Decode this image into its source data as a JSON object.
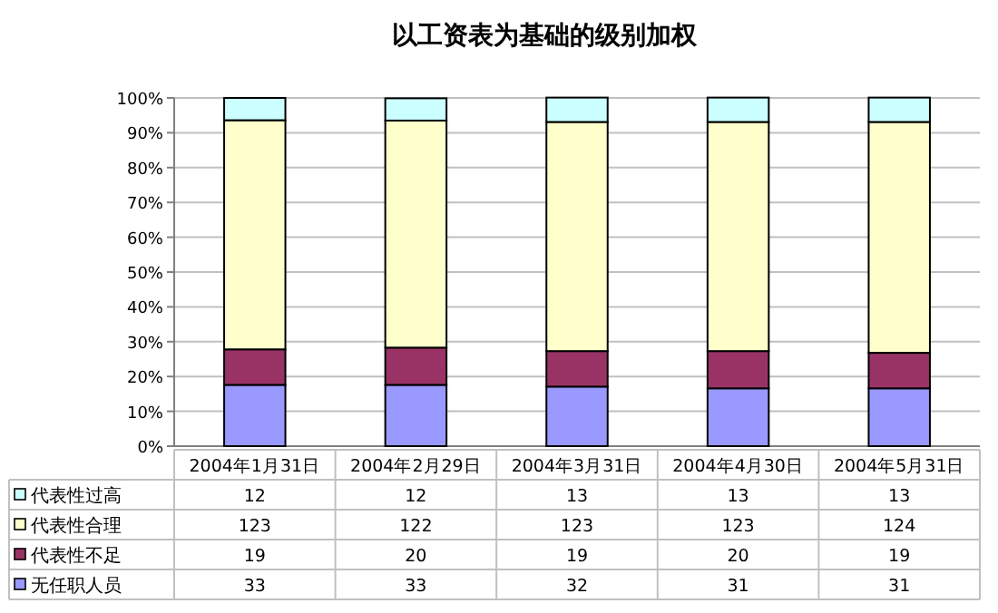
{
  "chart_data": {
    "type": "bar",
    "title": "以工资表为基础的级别加权",
    "stacked": true,
    "grid": "y",
    "legend": "bottom",
    "categories": [
      "2004年1月31日",
      "2004年2月29日",
      "2004年3月31日",
      "2004年4月30日",
      "2004年5月31日"
    ],
    "ylim": [
      0,
      100
    ],
    "yticks": [
      {
        "value": 0,
        "label": "0%"
      },
      {
        "value": 10,
        "label": "10%"
      },
      {
        "value": 20,
        "label": "20%"
      },
      {
        "value": 30,
        "label": "30%"
      },
      {
        "value": 40,
        "label": "40%"
      },
      {
        "value": 50,
        "label": "50%"
      },
      {
        "value": 60,
        "label": "60%"
      },
      {
        "value": 70,
        "label": "70%"
      },
      {
        "value": 80,
        "label": "80%"
      },
      {
        "value": 90,
        "label": "90%"
      },
      {
        "value": 100,
        "label": "100%"
      }
    ],
    "series": [
      {
        "name": "无任职人员",
        "color": "#9999ff",
        "values": [
          17.6,
          17.6,
          17.1,
          16.6,
          16.6
        ]
      },
      {
        "name": "代表性不足",
        "color": "#993366",
        "values": [
          10.2,
          10.7,
          10.2,
          10.7,
          10.2
        ]
      },
      {
        "name": "代表性合理",
        "color": "#ffffcc",
        "values": [
          65.8,
          65.2,
          65.8,
          65.8,
          66.3
        ]
      },
      {
        "name": "代表性过高",
        "color": "#ccffff",
        "values": [
          6.4,
          6.4,
          7.0,
          7.0,
          7.0
        ]
      }
    ],
    "annotations": [
      "12",
      "12",
      "13",
      "13",
      "13",
      "123",
      "122",
      "123",
      "123",
      "124",
      "19",
      "20",
      "19",
      "20",
      "19",
      "33",
      "33",
      "32",
      "31",
      "31"
    ]
  }
}
